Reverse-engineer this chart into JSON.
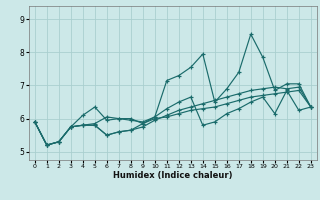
{
  "title": "",
  "xlabel": "Humidex (Indice chaleur)",
  "bg_color": "#cce8e8",
  "line_color": "#1a6b6b",
  "grid_color": "#aacfcf",
  "xlim": [
    -0.5,
    23.5
  ],
  "ylim": [
    4.75,
    9.4
  ],
  "xticks": [
    0,
    1,
    2,
    3,
    4,
    5,
    6,
    7,
    8,
    9,
    10,
    11,
    12,
    13,
    14,
    15,
    16,
    17,
    18,
    19,
    20,
    21,
    22,
    23
  ],
  "yticks": [
    5,
    6,
    7,
    8,
    9
  ],
  "series": [
    [
      5.9,
      5.2,
      5.3,
      5.75,
      6.1,
      6.35,
      5.95,
      6.0,
      5.95,
      5.9,
      6.05,
      7.15,
      7.3,
      7.55,
      7.95,
      6.5,
      6.9,
      7.4,
      8.55,
      7.85,
      6.85,
      7.05,
      7.05,
      6.35
    ],
    [
      5.9,
      5.2,
      5.3,
      5.75,
      5.8,
      5.85,
      6.05,
      6.0,
      6.0,
      5.85,
      6.05,
      6.3,
      6.5,
      6.65,
      5.8,
      5.9,
      6.15,
      6.3,
      6.5,
      6.65,
      6.15,
      6.85,
      6.25,
      6.35
    ],
    [
      5.9,
      5.2,
      5.3,
      5.75,
      5.8,
      5.8,
      5.5,
      5.6,
      5.65,
      5.75,
      5.95,
      6.1,
      6.25,
      6.35,
      6.45,
      6.55,
      6.65,
      6.75,
      6.85,
      6.9,
      6.95,
      6.9,
      6.95,
      6.35
    ],
    [
      5.9,
      5.2,
      5.3,
      5.75,
      5.8,
      5.8,
      5.5,
      5.6,
      5.65,
      5.85,
      6.0,
      6.05,
      6.15,
      6.25,
      6.3,
      6.35,
      6.45,
      6.55,
      6.65,
      6.7,
      6.75,
      6.8,
      6.85,
      6.35
    ]
  ]
}
